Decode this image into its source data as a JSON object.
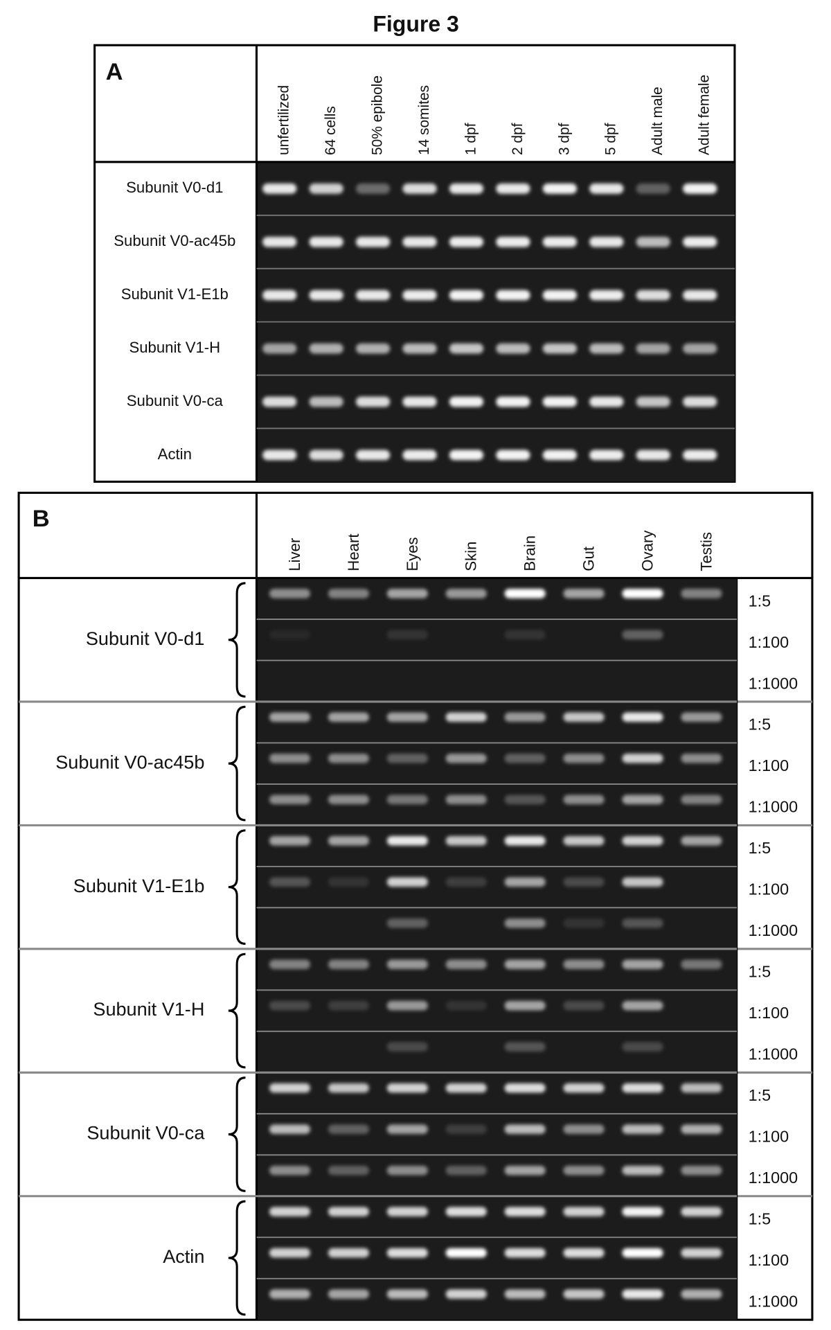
{
  "title": "Figure 3",
  "panel_a": {
    "label": "A",
    "columns": [
      "unfertilized",
      "64 cells",
      "50% epibole",
      "14 somites",
      "1 dpf",
      "2 dpf",
      "3 dpf",
      "5 dpf",
      "Adult male",
      "Adult female"
    ],
    "rows": [
      "Subunit V0-d1",
      "Subunit V0-ac45b",
      "Subunit V1-E1b",
      "Subunit V1-H",
      "Subunit V0-ca",
      "Actin"
    ]
  },
  "panel_b": {
    "label": "B",
    "columns": [
      "Liver",
      "Heart",
      "Eyes",
      "Skin",
      "Brain",
      "Gut",
      "Ovary",
      "Testis"
    ],
    "groups": [
      {
        "label": "Subunit V0-d1",
        "dilutions": [
          "1:5",
          "1:100",
          "1:1000"
        ]
      },
      {
        "label": "Subunit V0-ac45b",
        "dilutions": [
          "1:5",
          "1:100",
          "1:1000"
        ]
      },
      {
        "label": "Subunit V1-E1b",
        "dilutions": [
          "1:5",
          "1:100",
          "1:1000"
        ]
      },
      {
        "label": "Subunit V1-H",
        "dilutions": [
          "1:5",
          "1:100",
          "1:1000"
        ]
      },
      {
        "label": "Subunit V0-ca",
        "dilutions": [
          "1:5",
          "1:100",
          "1:1000"
        ]
      },
      {
        "label": "Actin",
        "dilutions": [
          "1:5",
          "1:100",
          "1:1000"
        ]
      }
    ]
  }
}
